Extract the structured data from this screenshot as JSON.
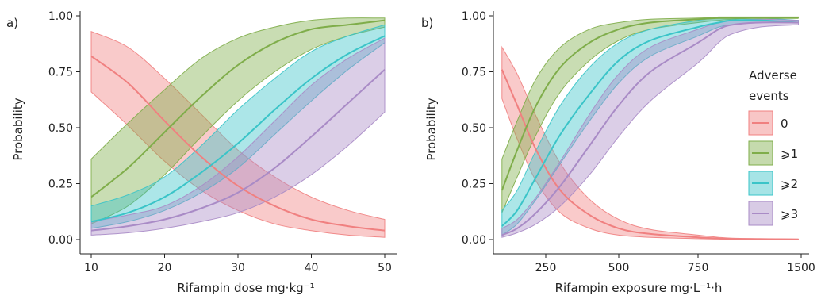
{
  "figure": {
    "legend": {
      "title_lines": [
        "Adverse",
        "events"
      ],
      "entries": [
        "0",
        "⩾1",
        "⩾2",
        "⩾3"
      ],
      "placement": "right of panel b"
    },
    "colors": {
      "0": "#f08080",
      "1": "#7fad4a",
      "2": "#3ac4c8",
      "3": "#a98bc6"
    }
  },
  "chart_data": [
    {
      "type": "line",
      "panel": "a)",
      "xlabel": "Rifampin dose mg·kg⁻¹",
      "ylabel": "Probability",
      "xlim": [
        10,
        50
      ],
      "ylim": [
        0,
        1
      ],
      "xticks": [
        "10",
        "20",
        "30",
        "40",
        "50"
      ],
      "yticks": [
        "0.00",
        "0.25",
        "0.50",
        "0.75",
        "1.00"
      ],
      "x": [
        10,
        15,
        20,
        25,
        30,
        35,
        40,
        45,
        50
      ],
      "series": [
        {
          "key": "0",
          "values": [
            0.82,
            0.7,
            0.53,
            0.37,
            0.24,
            0.15,
            0.09,
            0.06,
            0.04
          ],
          "lower": [
            0.66,
            0.51,
            0.35,
            0.22,
            0.13,
            0.07,
            0.04,
            0.02,
            0.01
          ],
          "upper": [
            0.93,
            0.86,
            0.72,
            0.56,
            0.4,
            0.28,
            0.19,
            0.13,
            0.09
          ]
        },
        {
          "key": "1",
          "values": [
            0.19,
            0.32,
            0.48,
            0.64,
            0.78,
            0.88,
            0.94,
            0.96,
            0.98
          ],
          "lower": [
            0.07,
            0.15,
            0.29,
            0.46,
            0.62,
            0.75,
            0.85,
            0.91,
            0.95
          ],
          "upper": [
            0.36,
            0.52,
            0.67,
            0.81,
            0.9,
            0.95,
            0.98,
            0.99,
            0.99
          ]
        },
        {
          "key": "2",
          "values": [
            0.08,
            0.12,
            0.19,
            0.3,
            0.43,
            0.58,
            0.72,
            0.83,
            0.91
          ],
          "lower": [
            0.05,
            0.08,
            0.13,
            0.21,
            0.32,
            0.47,
            0.62,
            0.76,
            0.88
          ],
          "upper": [
            0.15,
            0.2,
            0.28,
            0.42,
            0.58,
            0.72,
            0.84,
            0.91,
            0.96
          ]
        },
        {
          "key": "3",
          "values": [
            0.04,
            0.06,
            0.09,
            0.14,
            0.21,
            0.32,
            0.46,
            0.61,
            0.76
          ],
          "lower": [
            0.02,
            0.03,
            0.05,
            0.08,
            0.12,
            0.19,
            0.29,
            0.42,
            0.57
          ],
          "upper": [
            0.08,
            0.11,
            0.15,
            0.24,
            0.37,
            0.53,
            0.69,
            0.81,
            0.9
          ]
        }
      ]
    },
    {
      "type": "line",
      "panel": "b)",
      "xlabel": "Rifampin exposure mg·L⁻¹·h",
      "ylabel": "Probability",
      "xlim": [
        0,
        1500
      ],
      "ylim": [
        0,
        1
      ],
      "xticks": [
        "250",
        "500",
        "750",
        "1500"
      ],
      "yticks": [
        "0.00",
        "0.25",
        "0.50",
        "0.75",
        "1.00"
      ],
      "x": [
        20,
        100,
        200,
        300,
        400,
        500,
        600,
        750,
        900,
        1000,
        1200,
        1480
      ],
      "series": [
        {
          "key": "0",
          "values": [
            0.76,
            0.6,
            0.4,
            0.22,
            0.11,
            0.05,
            0.025,
            0.01,
            0.005,
            0.003,
            0.002,
            0.001
          ],
          "lower": [
            0.63,
            0.45,
            0.26,
            0.12,
            0.05,
            0.02,
            0.01,
            0.004,
            0.002,
            0.001,
            0.001,
            0.0
          ],
          "upper": [
            0.86,
            0.74,
            0.55,
            0.34,
            0.18,
            0.09,
            0.045,
            0.02,
            0.01,
            0.006,
            0.004,
            0.002
          ]
        },
        {
          "key": "1",
          "values": [
            0.22,
            0.4,
            0.6,
            0.77,
            0.88,
            0.94,
            0.97,
            0.985,
            0.99,
            0.99,
            0.99,
            0.99
          ],
          "lower": [
            0.12,
            0.28,
            0.47,
            0.66,
            0.8,
            0.89,
            0.94,
            0.97,
            0.98,
            0.985,
            0.99,
            0.99
          ],
          "upper": [
            0.36,
            0.53,
            0.72,
            0.86,
            0.94,
            0.97,
            0.985,
            0.99,
            0.995,
            0.995,
            0.995,
            0.995
          ]
        },
        {
          "key": "2",
          "values": [
            0.06,
            0.13,
            0.28,
            0.47,
            0.65,
            0.8,
            0.89,
            0.95,
            0.97,
            0.98,
            0.98,
            0.97
          ],
          "lower": [
            0.02,
            0.07,
            0.18,
            0.34,
            0.53,
            0.7,
            0.82,
            0.91,
            0.95,
            0.96,
            0.97,
            0.97
          ],
          "upper": [
            0.13,
            0.22,
            0.4,
            0.6,
            0.77,
            0.88,
            0.94,
            0.98,
            0.99,
            0.99,
            0.99,
            0.98
          ]
        },
        {
          "key": "3",
          "values": [
            0.02,
            0.05,
            0.12,
            0.24,
            0.42,
            0.6,
            0.75,
            0.88,
            0.94,
            0.96,
            0.97,
            0.97
          ],
          "lower": [
            0.01,
            0.03,
            0.07,
            0.15,
            0.29,
            0.46,
            0.62,
            0.79,
            0.88,
            0.92,
            0.95,
            0.96
          ],
          "upper": [
            0.05,
            0.09,
            0.19,
            0.35,
            0.56,
            0.74,
            0.86,
            0.94,
            0.97,
            0.98,
            0.985,
            0.98
          ]
        }
      ]
    }
  ]
}
